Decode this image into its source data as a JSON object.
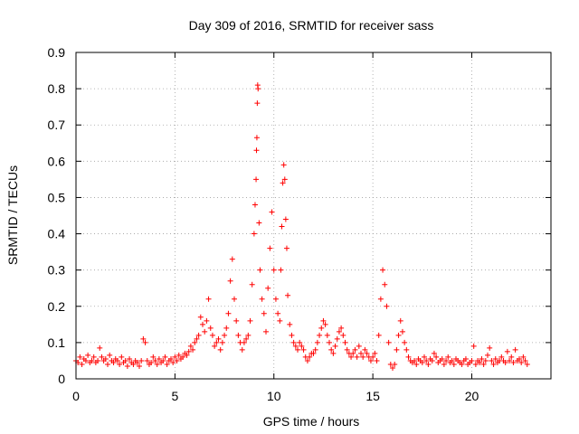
{
  "chart_data": {
    "type": "scatter",
    "title": "Day 309 of 2016, SRMTID for receiver sass",
    "xlabel": "GPS time / hours",
    "ylabel": "SRMTID / TECUs",
    "xlim": [
      0,
      24
    ],
    "ylim": [
      0,
      0.9
    ],
    "grid": true,
    "marker": "+",
    "series_color": "#ff0000",
    "x_ticks": [
      {
        "value": 0,
        "label": "0"
      },
      {
        "value": 5,
        "label": "5"
      },
      {
        "value": 10,
        "label": "10"
      },
      {
        "value": 15,
        "label": "15"
      },
      {
        "value": 20,
        "label": "20"
      }
    ],
    "y_ticks": [
      {
        "value": 0,
        "label": "0"
      },
      {
        "value": 0.1,
        "label": "0.1"
      },
      {
        "value": 0.2,
        "label": "0.2"
      },
      {
        "value": 0.3,
        "label": "0.3"
      },
      {
        "value": 0.4,
        "label": "0.4"
      },
      {
        "value": 0.5,
        "label": "0.5"
      },
      {
        "value": 0.6,
        "label": "0.6"
      },
      {
        "value": 0.7,
        "label": "0.7"
      },
      {
        "value": 0.8,
        "label": "0.8"
      },
      {
        "value": 0.9,
        "label": "0.9"
      }
    ],
    "series": [
      {
        "name": "SRMTID",
        "points": [
          [
            0.0,
            0.05
          ],
          [
            0.1,
            0.045
          ],
          [
            0.2,
            0.06
          ],
          [
            0.3,
            0.04
          ],
          [
            0.4,
            0.055
          ],
          [
            0.5,
            0.05
          ],
          [
            0.6,
            0.065
          ],
          [
            0.7,
            0.045
          ],
          [
            0.8,
            0.05
          ],
          [
            0.9,
            0.06
          ],
          [
            1.0,
            0.045
          ],
          [
            1.1,
            0.05
          ],
          [
            1.2,
            0.085
          ],
          [
            1.3,
            0.06
          ],
          [
            1.4,
            0.05
          ],
          [
            1.5,
            0.055
          ],
          [
            1.6,
            0.04
          ],
          [
            1.7,
            0.065
          ],
          [
            1.8,
            0.05
          ],
          [
            1.9,
            0.045
          ],
          [
            2.0,
            0.055
          ],
          [
            2.1,
            0.05
          ],
          [
            2.2,
            0.04
          ],
          [
            2.3,
            0.06
          ],
          [
            2.4,
            0.045
          ],
          [
            2.5,
            0.05
          ],
          [
            2.6,
            0.035
          ],
          [
            2.7,
            0.055
          ],
          [
            2.8,
            0.045
          ],
          [
            2.9,
            0.04
          ],
          [
            3.0,
            0.05
          ],
          [
            3.1,
            0.045
          ],
          [
            3.2,
            0.035
          ],
          [
            3.3,
            0.05
          ],
          [
            3.4,
            0.11
          ],
          [
            3.5,
            0.1
          ],
          [
            3.6,
            0.05
          ],
          [
            3.7,
            0.04
          ],
          [
            3.8,
            0.045
          ],
          [
            3.9,
            0.06
          ],
          [
            4.0,
            0.05
          ],
          [
            4.1,
            0.04
          ],
          [
            4.2,
            0.055
          ],
          [
            4.3,
            0.045
          ],
          [
            4.4,
            0.05
          ],
          [
            4.5,
            0.06
          ],
          [
            4.6,
            0.04
          ],
          [
            4.7,
            0.05
          ],
          [
            4.8,
            0.055
          ],
          [
            4.9,
            0.045
          ],
          [
            5.0,
            0.06
          ],
          [
            5.1,
            0.05
          ],
          [
            5.2,
            0.065
          ],
          [
            5.3,
            0.055
          ],
          [
            5.4,
            0.06
          ],
          [
            5.5,
            0.07
          ],
          [
            5.6,
            0.065
          ],
          [
            5.7,
            0.075
          ],
          [
            5.8,
            0.09
          ],
          [
            5.9,
            0.08
          ],
          [
            6.0,
            0.1
          ],
          [
            6.1,
            0.11
          ],
          [
            6.2,
            0.12
          ],
          [
            6.3,
            0.17
          ],
          [
            6.4,
            0.15
          ],
          [
            6.5,
            0.13
          ],
          [
            6.6,
            0.16
          ],
          [
            6.7,
            0.22
          ],
          [
            6.8,
            0.14
          ],
          [
            6.9,
            0.12
          ],
          [
            7.0,
            0.09
          ],
          [
            7.1,
            0.1
          ],
          [
            7.2,
            0.11
          ],
          [
            7.3,
            0.08
          ],
          [
            7.4,
            0.1
          ],
          [
            7.5,
            0.12
          ],
          [
            7.6,
            0.14
          ],
          [
            7.7,
            0.18
          ],
          [
            7.8,
            0.27
          ],
          [
            7.9,
            0.33
          ],
          [
            8.0,
            0.22
          ],
          [
            8.1,
            0.16
          ],
          [
            8.2,
            0.12
          ],
          [
            8.3,
            0.1
          ],
          [
            8.4,
            0.08
          ],
          [
            8.5,
            0.1
          ],
          [
            8.6,
            0.11
          ],
          [
            8.7,
            0.12
          ],
          [
            8.8,
            0.16
          ],
          [
            8.9,
            0.26
          ],
          [
            9.0,
            0.4
          ],
          [
            9.05,
            0.48
          ],
          [
            9.1,
            0.55
          ],
          [
            9.12,
            0.63
          ],
          [
            9.14,
            0.665
          ],
          [
            9.16,
            0.76
          ],
          [
            9.18,
            0.81
          ],
          [
            9.2,
            0.8
          ],
          [
            9.25,
            0.43
          ],
          [
            9.3,
            0.3
          ],
          [
            9.4,
            0.22
          ],
          [
            9.5,
            0.18
          ],
          [
            9.6,
            0.13
          ],
          [
            9.7,
            0.25
          ],
          [
            9.8,
            0.36
          ],
          [
            9.9,
            0.46
          ],
          [
            10.0,
            0.3
          ],
          [
            10.1,
            0.22
          ],
          [
            10.2,
            0.18
          ],
          [
            10.3,
            0.16
          ],
          [
            10.35,
            0.3
          ],
          [
            10.4,
            0.42
          ],
          [
            10.45,
            0.54
          ],
          [
            10.5,
            0.59
          ],
          [
            10.55,
            0.55
          ],
          [
            10.6,
            0.44
          ],
          [
            10.65,
            0.36
          ],
          [
            10.7,
            0.23
          ],
          [
            10.8,
            0.15
          ],
          [
            10.9,
            0.12
          ],
          [
            11.0,
            0.1
          ],
          [
            11.1,
            0.09
          ],
          [
            11.2,
            0.08
          ],
          [
            11.3,
            0.1
          ],
          [
            11.4,
            0.09
          ],
          [
            11.5,
            0.08
          ],
          [
            11.6,
            0.06
          ],
          [
            11.7,
            0.05
          ],
          [
            11.8,
            0.06
          ],
          [
            11.9,
            0.07
          ],
          [
            12.0,
            0.07
          ],
          [
            12.1,
            0.08
          ],
          [
            12.2,
            0.1
          ],
          [
            12.3,
            0.12
          ],
          [
            12.4,
            0.14
          ],
          [
            12.5,
            0.16
          ],
          [
            12.6,
            0.15
          ],
          [
            12.7,
            0.12
          ],
          [
            12.8,
            0.1
          ],
          [
            12.9,
            0.08
          ],
          [
            13.0,
            0.07
          ],
          [
            13.1,
            0.09
          ],
          [
            13.2,
            0.11
          ],
          [
            13.3,
            0.13
          ],
          [
            13.4,
            0.14
          ],
          [
            13.5,
            0.12
          ],
          [
            13.6,
            0.1
          ],
          [
            13.7,
            0.08
          ],
          [
            13.8,
            0.07
          ],
          [
            13.9,
            0.06
          ],
          [
            14.0,
            0.07
          ],
          [
            14.1,
            0.08
          ],
          [
            14.2,
            0.06
          ],
          [
            14.3,
            0.09
          ],
          [
            14.4,
            0.07
          ],
          [
            14.5,
            0.06
          ],
          [
            14.6,
            0.08
          ],
          [
            14.7,
            0.07
          ],
          [
            14.8,
            0.06
          ],
          [
            14.9,
            0.05
          ],
          [
            15.0,
            0.06
          ],
          [
            15.1,
            0.07
          ],
          [
            15.2,
            0.05
          ],
          [
            15.3,
            0.12
          ],
          [
            15.4,
            0.22
          ],
          [
            15.5,
            0.3
          ],
          [
            15.6,
            0.26
          ],
          [
            15.7,
            0.2
          ],
          [
            15.8,
            0.1
          ],
          [
            15.9,
            0.04
          ],
          [
            16.0,
            0.03
          ],
          [
            16.1,
            0.04
          ],
          [
            16.2,
            0.08
          ],
          [
            16.3,
            0.12
          ],
          [
            16.4,
            0.16
          ],
          [
            16.5,
            0.13
          ],
          [
            16.6,
            0.1
          ],
          [
            16.7,
            0.08
          ],
          [
            16.8,
            0.06
          ],
          [
            16.9,
            0.05
          ],
          [
            17.0,
            0.045
          ],
          [
            17.1,
            0.05
          ],
          [
            17.2,
            0.04
          ],
          [
            17.3,
            0.055
          ],
          [
            17.4,
            0.05
          ],
          [
            17.5,
            0.045
          ],
          [
            17.6,
            0.06
          ],
          [
            17.7,
            0.05
          ],
          [
            17.8,
            0.04
          ],
          [
            17.9,
            0.055
          ],
          [
            18.0,
            0.05
          ],
          [
            18.1,
            0.07
          ],
          [
            18.2,
            0.06
          ],
          [
            18.3,
            0.045
          ],
          [
            18.4,
            0.05
          ],
          [
            18.5,
            0.055
          ],
          [
            18.6,
            0.04
          ],
          [
            18.7,
            0.05
          ],
          [
            18.8,
            0.06
          ],
          [
            18.9,
            0.045
          ],
          [
            19.0,
            0.05
          ],
          [
            19.1,
            0.04
          ],
          [
            19.2,
            0.055
          ],
          [
            19.3,
            0.05
          ],
          [
            19.4,
            0.045
          ],
          [
            19.5,
            0.04
          ],
          [
            19.6,
            0.05
          ],
          [
            19.7,
            0.055
          ],
          [
            19.8,
            0.04
          ],
          [
            19.9,
            0.045
          ],
          [
            20.0,
            0.05
          ],
          [
            20.1,
            0.09
          ],
          [
            20.2,
            0.04
          ],
          [
            20.3,
            0.05
          ],
          [
            20.4,
            0.045
          ],
          [
            20.5,
            0.055
          ],
          [
            20.6,
            0.04
          ],
          [
            20.7,
            0.05
          ],
          [
            20.8,
            0.065
          ],
          [
            20.9,
            0.085
          ],
          [
            21.0,
            0.05
          ],
          [
            21.1,
            0.04
          ],
          [
            21.2,
            0.055
          ],
          [
            21.3,
            0.045
          ],
          [
            21.4,
            0.05
          ],
          [
            21.5,
            0.06
          ],
          [
            21.6,
            0.05
          ],
          [
            21.7,
            0.045
          ],
          [
            21.8,
            0.075
          ],
          [
            21.9,
            0.05
          ],
          [
            22.0,
            0.06
          ],
          [
            22.1,
            0.045
          ],
          [
            22.2,
            0.08
          ],
          [
            22.3,
            0.05
          ],
          [
            22.4,
            0.055
          ],
          [
            22.5,
            0.045
          ],
          [
            22.6,
            0.06
          ],
          [
            22.7,
            0.05
          ],
          [
            22.8,
            0.04
          ]
        ]
      }
    ]
  }
}
